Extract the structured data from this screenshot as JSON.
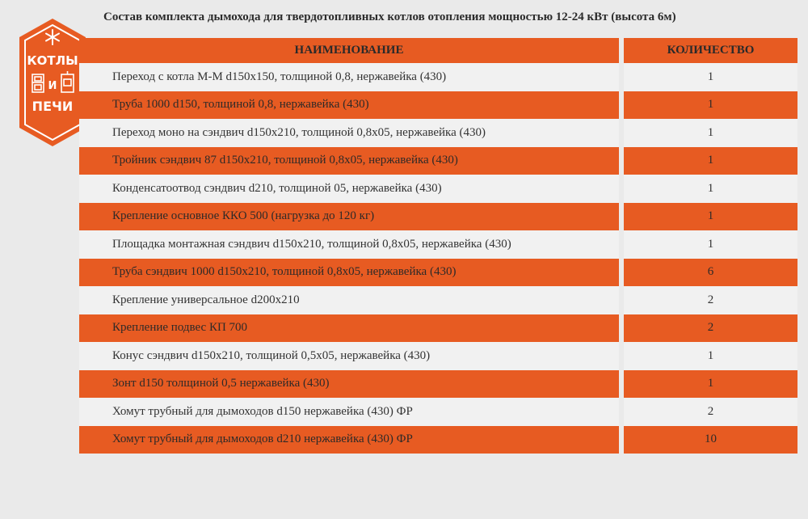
{
  "title": "Состав комплекта дымохода для твердотопливных котлов отопления мощностью 12-24 кВт (высота 6м)",
  "logo": {
    "line1": "КОТЛЫ",
    "line2": "И",
    "line3": "ПЕЧИ",
    "icon": "snowflake-icon"
  },
  "colors": {
    "accent": "#e75b22",
    "background": "#eaeaea",
    "row_light": "#f1f1f1"
  },
  "table": {
    "headers": {
      "name": "НАИМЕНОВАНИЕ",
      "qty": "КОЛИЧЕСТВО"
    },
    "rows": [
      {
        "name": "Переход с котла М-М d150x150, толщиной 0,8, нержавейка (430)",
        "qty": "1"
      },
      {
        "name": "Труба 1000 d150, толщиной 0,8, нержавейка (430)",
        "qty": "1"
      },
      {
        "name": "Переход моно на сэндвич d150x210, толщиной 0,8x05, нержавейка (430)",
        "qty": "1"
      },
      {
        "name": "Тройник сэндвич 87 d150x210, толщиной 0,8x05, нержавейка (430)",
        "qty": "1"
      },
      {
        "name": "Конденсатоотвод сэндвич d210, толщиной 05, нержавейка (430)",
        "qty": "1"
      },
      {
        "name": "Крепление основное ККО 500 (нагрузка до 120 кг)",
        "qty": "1"
      },
      {
        "name": "Площадка монтажная сэндвич d150x210, толщиной 0,8x05, нержавейка (430)",
        "qty": "1"
      },
      {
        "name": "Труба сэндвич 1000 d150x210, толщиной 0,8x05, нержавейка (430)",
        "qty": "6"
      },
      {
        "name": "Крепление универсальное d200x210",
        "qty": "2"
      },
      {
        "name": "Крепление подвес КП 700",
        "qty": "2"
      },
      {
        "name": "Конус сэндвич d150x210, толщиной 0,5x05, нержавейка (430)",
        "qty": "1"
      },
      {
        "name": "Зонт d150 толщиной 0,5 нержавейка (430)",
        "qty": "1"
      },
      {
        "name": "Хомут трубный для дымоходов d150 нержавейка (430) ФР",
        "qty": "2"
      },
      {
        "name": "Хомут трубный для дымоходов d210 нержавейка (430) ФР",
        "qty": "10"
      }
    ]
  }
}
